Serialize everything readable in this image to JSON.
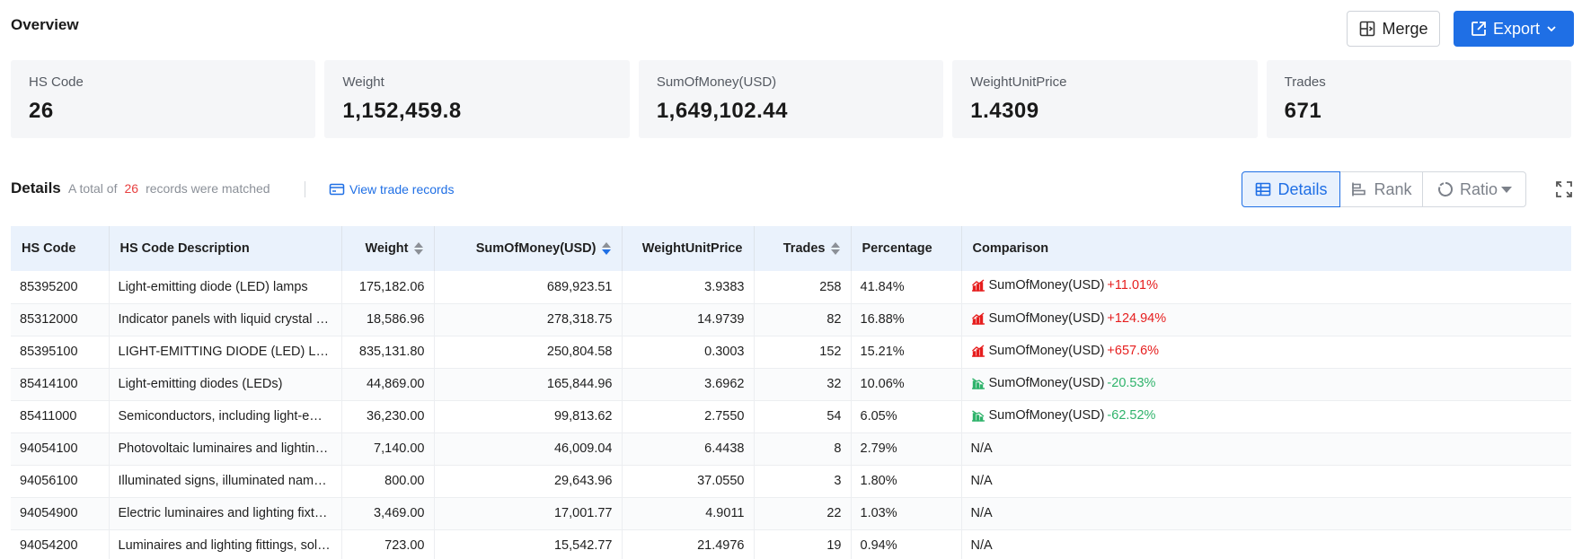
{
  "header": {
    "title": "Overview",
    "merge_label": "Merge",
    "export_label": "Export"
  },
  "cards": [
    {
      "label": "HS Code",
      "value": "26"
    },
    {
      "label": "Weight",
      "value": "1,152,459.8"
    },
    {
      "label": "SumOfMoney(USD)",
      "value": "1,649,102.44"
    },
    {
      "label": "WeightUnitPrice",
      "value": "1.4309"
    },
    {
      "label": "Trades",
      "value": "671"
    }
  ],
  "details": {
    "title": "Details",
    "matched_prefix": "A total of",
    "matched_count": "26",
    "matched_suffix": "records were matched",
    "view_link": "View trade records",
    "tabs": {
      "details": "Details",
      "rank": "Rank",
      "ratio": "Ratio"
    }
  },
  "colors": {
    "accent": "#1f6fe5",
    "up": "#e61e1e",
    "down": "#2fb36b",
    "count": "#e84141"
  },
  "table": {
    "columns": [
      "HS Code",
      "HS Code Description",
      "Weight",
      "SumOfMoney(USD)",
      "WeightUnitPrice",
      "Trades",
      "Percentage",
      "Comparison"
    ],
    "rows": [
      {
        "code": "85395200",
        "desc": "Light-emitting diode (LED) lamps",
        "weight": "175,182.06",
        "money": "689,923.51",
        "wup": "3.9383",
        "trades": "258",
        "pct": "41.84%",
        "cmp_label": "SumOfMoney(USD)",
        "cmp_val": "+11.01%",
        "trend": "up"
      },
      {
        "code": "85312000",
        "desc": "Indicator panels with liquid crystal devices (LCD) or light-emitting diodes (LED)",
        "weight": "18,586.96",
        "money": "278,318.75",
        "wup": "14.9739",
        "trades": "82",
        "pct": "16.88%",
        "cmp_label": "SumOfMoney(USD)",
        "cmp_val": "+124.94%",
        "trend": "up"
      },
      {
        "code": "85395100",
        "desc": "LIGHT-EMITTING DIODE (LED) LIGHT SOURCES",
        "weight": "835,131.80",
        "money": "250,804.58",
        "wup": "0.3003",
        "trades": "152",
        "pct": "15.21%",
        "cmp_label": "SumOfMoney(USD)",
        "cmp_val": "+657.6%",
        "trend": "up"
      },
      {
        "code": "85414100",
        "desc": "Light-emitting diodes (LEDs)",
        "weight": "44,869.00",
        "money": "165,844.96",
        "wup": "3.6962",
        "trades": "32",
        "pct": "10.06%",
        "cmp_label": "SumOfMoney(USD)",
        "cmp_val": "-20.53%",
        "trend": "down"
      },
      {
        "code": "85411000",
        "desc": "Semiconductors, including light-emitting diodes",
        "weight": "36,230.00",
        "money": "99,813.62",
        "wup": "2.7550",
        "trades": "54",
        "pct": "6.05%",
        "cmp_label": "SumOfMoney(USD)",
        "cmp_val": "-62.52%",
        "trend": "down"
      },
      {
        "code": "94054100",
        "desc": "Photovoltaic luminaires and lighting fittings",
        "weight": "7,140.00",
        "money": "46,009.04",
        "wup": "6.4438",
        "trades": "8",
        "pct": "2.79%",
        "cmp_na": "N/A"
      },
      {
        "code": "94056100",
        "desc": "Illuminated signs, illuminated nameplates",
        "weight": "800.00",
        "money": "29,643.96",
        "wup": "37.0550",
        "trades": "3",
        "pct": "1.80%",
        "cmp_na": "N/A"
      },
      {
        "code": "94054900",
        "desc": "Electric luminaires and lighting fixtures",
        "weight": "3,469.00",
        "money": "17,001.77",
        "wup": "4.9011",
        "trades": "22",
        "pct": "1.03%",
        "cmp_na": "N/A"
      },
      {
        "code": "94054200",
        "desc": "Luminaires and lighting fittings, solely designed for LED",
        "weight": "723.00",
        "money": "15,542.77",
        "wup": "21.4976",
        "trades": "19",
        "pct": "0.94%",
        "cmp_na": "N/A"
      }
    ]
  }
}
